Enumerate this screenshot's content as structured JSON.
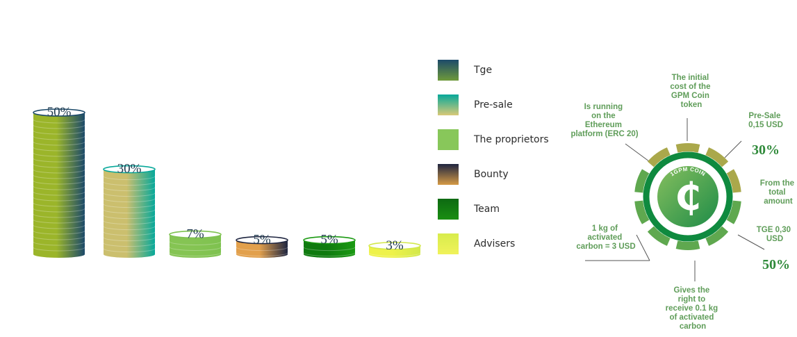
{
  "chart_data": [
    {
      "type": "bar",
      "categories": [
        "Tge",
        "Pre-sale",
        "The proprietors",
        "Bounty",
        "Team",
        "Advisers"
      ],
      "values": [
        50,
        30,
        7,
        5,
        5,
        3
      ],
      "data_labels": [
        "50%",
        "30%",
        "7%",
        "5%",
        "5%",
        "3%"
      ],
      "title": "",
      "xlabel": "",
      "ylabel": "",
      "legend": "right",
      "grid": false,
      "colors": [
        [
          "#9bb52a",
          "#1c4a6a"
        ],
        [
          "#cbbf6e",
          "#07a89a"
        ],
        [
          "#85c453",
          "#7ec24f"
        ],
        [
          "#e2a04c",
          "#1e2540"
        ],
        [
          "#0f7a0f",
          "#1b9a12"
        ],
        [
          "#eef24a",
          "#d2e84a"
        ]
      ]
    }
  ],
  "legend": {
    "items": [
      {
        "label": "Tge",
        "colors": [
          "#1c4a6a",
          "#6f9a3a"
        ]
      },
      {
        "label": "Pre-sale",
        "colors": [
          "#07a89a",
          "#d9c977"
        ]
      },
      {
        "label": "The proprietors",
        "colors": [
          "#88c75a",
          "#88c75a"
        ]
      },
      {
        "label": "Bounty",
        "colors": [
          "#1e2540",
          "#d59a45"
        ]
      },
      {
        "label": "Team",
        "colors": [
          "#0d6a12",
          "#1a8e12"
        ]
      },
      {
        "label": "Advisers",
        "colors": [
          "#d8ec4c",
          "#f0f25a"
        ]
      }
    ]
  },
  "coin": {
    "inner_text": "1GPM COIN",
    "symbol": "₵",
    "colors": {
      "ring": "#0f8a3f",
      "center_light": "#7ab85a",
      "center_dark": "#1f8e48",
      "green_seg": "#5fa84f",
      "olive_seg": "#aaa84b"
    },
    "annotations": {
      "top": [
        "The initial",
        "cost of the",
        "GPM Coin",
        "token"
      ],
      "top_left": [
        "Is running",
        "on the",
        "Ethereum",
        "platform (ERC 20)"
      ],
      "top_right": [
        "Pre-Sale",
        "0,15 USD"
      ],
      "right": [
        "From the",
        "total",
        "amount"
      ],
      "right_lower": [
        "TGE 0,30",
        "USD"
      ],
      "left_lower": [
        "1 kg of",
        "activated",
        "carbon = 3 USD"
      ],
      "bottom": [
        "Gives the",
        "right to",
        "receive 0.1 kg",
        "of activated",
        "carbon"
      ]
    },
    "pct_top": "30%",
    "pct_bottom": "50%"
  }
}
